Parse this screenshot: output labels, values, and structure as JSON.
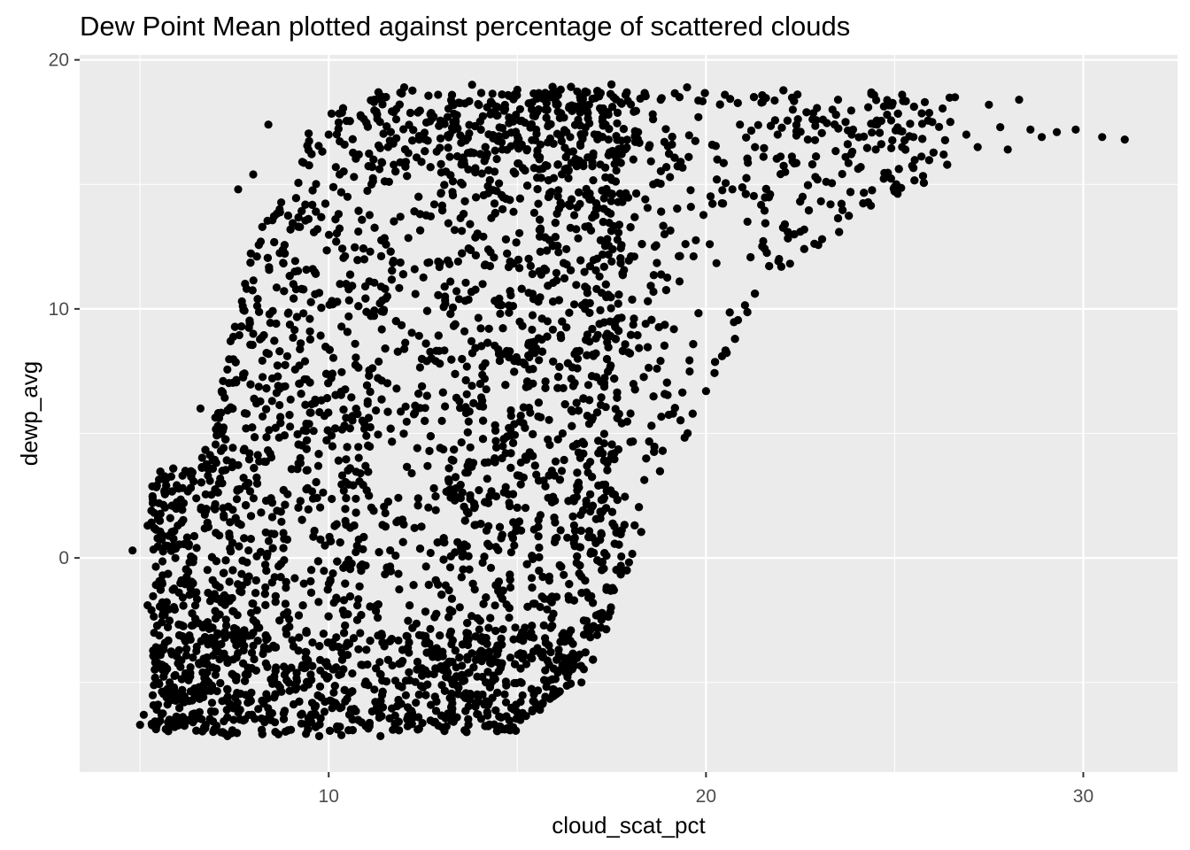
{
  "chart_data": {
    "type": "scatter",
    "title": "Dew Point Mean plotted against percentage of scattered clouds",
    "xlabel": "cloud_scat_pct",
    "ylabel": "dewp_avg",
    "xlim": [
      3.4,
      32.5
    ],
    "ylim": [
      -8.6,
      20.2
    ],
    "x_ticks": [
      10,
      20,
      30
    ],
    "y_ticks": [
      0,
      10,
      20
    ],
    "x_tick_labels": [
      "10",
      "20",
      "30"
    ],
    "y_tick_labels": [
      "0",
      "10",
      "20"
    ],
    "grid": true,
    "legend": "none",
    "panel_background": "#ebebeb",
    "grid_color": "#ffffff",
    "point_color": "#000000",
    "points": [
      [
        4.8,
        0.3
      ],
      [
        5.0,
        -6.7
      ],
      [
        5.1,
        -6.3
      ],
      [
        5.2,
        1.3
      ],
      [
        5.2,
        -1.9
      ],
      [
        5.3,
        1.9
      ],
      [
        5.4,
        -4.2
      ],
      [
        5.5,
        2.2
      ],
      [
        5.6,
        -0.7
      ],
      [
        5.8,
        1.6
      ],
      [
        5.9,
        -5.2
      ],
      [
        6.0,
        1.3
      ],
      [
        6.1,
        -2.7
      ],
      [
        6.2,
        3.5
      ],
      [
        6.3,
        -6.5
      ],
      [
        6.4,
        -4.0
      ],
      [
        6.5,
        0.4
      ],
      [
        6.6,
        6.0
      ],
      [
        6.7,
        -6.8
      ],
      [
        6.8,
        -1.4
      ],
      [
        6.8,
        3.3
      ],
      [
        7.0,
        -4.7
      ],
      [
        7.1,
        0.9
      ],
      [
        7.2,
        7.1
      ],
      [
        7.2,
        2.0
      ],
      [
        7.3,
        -6.1
      ],
      [
        7.4,
        8.7
      ],
      [
        7.5,
        -3.3
      ],
      [
        7.6,
        14.8
      ],
      [
        7.6,
        1.4
      ],
      [
        7.7,
        10.3
      ],
      [
        7.8,
        -5.5
      ],
      [
        7.9,
        4.2
      ],
      [
        8.0,
        15.4
      ],
      [
        8.0,
        9.0
      ],
      [
        8.1,
        -2.1
      ],
      [
        8.2,
        12.7
      ],
      [
        8.3,
        -6.6
      ],
      [
        8.4,
        17.4
      ],
      [
        8.5,
        6.3
      ],
      [
        8.6,
        -4.4
      ],
      [
        8.7,
        14.0
      ],
      [
        8.8,
        1.0
      ],
      [
        8.9,
        8.1
      ],
      [
        9.0,
        -6.9
      ],
      [
        9.1,
        11.5
      ],
      [
        9.2,
        3.8
      ],
      [
        9.3,
        15.9
      ],
      [
        9.4,
        -3.0
      ],
      [
        9.5,
        9.6
      ],
      [
        9.6,
        5.1
      ],
      [
        9.7,
        13.2
      ],
      [
        9.8,
        -5.6
      ],
      [
        9.9,
        0.5
      ],
      [
        10.0,
        17.0
      ],
      [
        10.1,
        7.4
      ],
      [
        10.2,
        -1.6
      ],
      [
        10.3,
        11.0
      ],
      [
        10.4,
        2.7
      ],
      [
        10.5,
        14.5
      ],
      [
        10.6,
        -6.2
      ],
      [
        10.7,
        8.6
      ],
      [
        10.8,
        16.2
      ],
      [
        10.9,
        -4.3
      ],
      [
        11.0,
        4.9
      ],
      [
        11.1,
        12.3
      ],
      [
        11.2,
        18.3
      ],
      [
        11.3,
        -2.4
      ],
      [
        11.4,
        9.9
      ],
      [
        11.5,
        1.8
      ],
      [
        11.6,
        15.1
      ],
      [
        11.7,
        -6.9
      ],
      [
        11.8,
        6.8
      ],
      [
        11.9,
        13.7
      ],
      [
        12.0,
        18.9
      ],
      [
        12.1,
        -3.6
      ],
      [
        12.2,
        3.4
      ],
      [
        12.3,
        10.6
      ],
      [
        12.4,
        16.8
      ],
      [
        12.5,
        -5.2
      ],
      [
        12.6,
        7.9
      ],
      [
        12.7,
        0.2
      ],
      [
        12.8,
        14.2
      ],
      [
        12.9,
        18.6
      ],
      [
        13.0,
        5.5
      ],
      [
        13.1,
        -1.1
      ],
      [
        13.2,
        11.8
      ],
      [
        13.3,
        17.5
      ],
      [
        13.4,
        -6.4
      ],
      [
        13.5,
        2.4
      ],
      [
        13.6,
        9.1
      ],
      [
        13.7,
        15.6
      ],
      [
        13.8,
        19.0
      ],
      [
        13.9,
        -4.1
      ],
      [
        14.0,
        6.1
      ],
      [
        14.1,
        12.9
      ],
      [
        14.2,
        18.1
      ],
      [
        14.3,
        -0.4
      ],
      [
        14.4,
        4.0
      ],
      [
        14.5,
        10.2
      ],
      [
        14.6,
        16.4
      ],
      [
        14.7,
        -5.8
      ],
      [
        14.8,
        8.3
      ],
      [
        14.9,
        13.9
      ],
      [
        15.0,
        18.8
      ],
      [
        15.1,
        1.1
      ],
      [
        15.2,
        -2.8
      ],
      [
        15.3,
        6.9
      ],
      [
        15.4,
        11.4
      ],
      [
        15.5,
        17.2
      ],
      [
        15.6,
        -6.1
      ],
      [
        15.7,
        3.1
      ],
      [
        15.8,
        9.5
      ],
      [
        15.9,
        14.7
      ],
      [
        16.0,
        18.5
      ],
      [
        16.1,
        -3.9
      ],
      [
        16.2,
        5.0
      ],
      [
        16.3,
        12.4
      ],
      [
        16.4,
        16.9
      ],
      [
        16.5,
        0.6
      ],
      [
        16.6,
        8.0
      ],
      [
        16.7,
        -5.0
      ],
      [
        16.8,
        13.3
      ],
      [
        16.9,
        18.2
      ],
      [
        17.0,
        2.1
      ],
      [
        17.1,
        10.8
      ],
      [
        17.2,
        15.8
      ],
      [
        17.3,
        4.6
      ],
      [
        17.4,
        17.9
      ],
      [
        17.5,
        11.9
      ],
      [
        17.6,
        8.8
      ],
      [
        17.7,
        16.3
      ],
      [
        17.8,
        14.4
      ],
      [
        17.9,
        18.7
      ],
      [
        18.0,
        5.8
      ],
      [
        18.1,
        12.1
      ],
      [
        18.2,
        17.1
      ],
      [
        18.4,
        9.4
      ],
      [
        18.6,
        15.0
      ],
      [
        18.7,
        7.6
      ],
      [
        18.8,
        18.4
      ],
      [
        18.9,
        13.0
      ],
      [
        19.1,
        16.6
      ],
      [
        19.3,
        11.1
      ],
      [
        19.5,
        18.9
      ],
      [
        19.6,
        14.1
      ],
      [
        19.8,
        17.7
      ],
      [
        20.0,
        6.7
      ],
      [
        20.1,
        12.6
      ],
      [
        20.3,
        16.0
      ],
      [
        20.5,
        18.6
      ],
      [
        20.7,
        14.8
      ],
      [
        20.9,
        17.4
      ],
      [
        21.1,
        13.5
      ],
      [
        21.3,
        16.5
      ],
      [
        21.5,
        18.3
      ],
      [
        21.7,
        14.6
      ],
      [
        21.9,
        17.0
      ],
      [
        22.1,
        15.5
      ],
      [
        22.3,
        18.0
      ],
      [
        22.5,
        13.1
      ],
      [
        22.7,
        16.8
      ],
      [
        22.9,
        15.3
      ],
      [
        23.1,
        17.6
      ],
      [
        23.3,
        14.2
      ],
      [
        23.5,
        18.4
      ],
      [
        23.7,
        16.1
      ],
      [
        23.9,
        17.2
      ],
      [
        24.1,
        15.7
      ],
      [
        24.3,
        18.1
      ],
      [
        24.5,
        16.4
      ],
      [
        24.8,
        17.8
      ],
      [
        25.0,
        14.9
      ],
      [
        25.2,
        18.6
      ],
      [
        25.5,
        16.9
      ],
      [
        25.8,
        18.3
      ],
      [
        26.0,
        17.5
      ],
      [
        26.3,
        16.2
      ],
      [
        26.6,
        18.5
      ],
      [
        26.9,
        17.0
      ],
      [
        27.2,
        16.5
      ],
      [
        27.5,
        18.2
      ],
      [
        27.8,
        17.3
      ],
      [
        28.0,
        16.4
      ],
      [
        28.3,
        18.4
      ],
      [
        28.6,
        17.2
      ],
      [
        28.9,
        16.9
      ],
      [
        29.3,
        17.1
      ],
      [
        29.8,
        17.2
      ],
      [
        30.5,
        16.9
      ],
      [
        31.1,
        16.8
      ]
    ],
    "dense_regions": [
      {
        "x": [
          4.8,
          19.0
        ],
        "y_floor_from": -7.3,
        "y_floor_to": -7.0,
        "y_ceiling_from": -1.0,
        "y_ceiling_to": 19.1
      }
    ]
  }
}
